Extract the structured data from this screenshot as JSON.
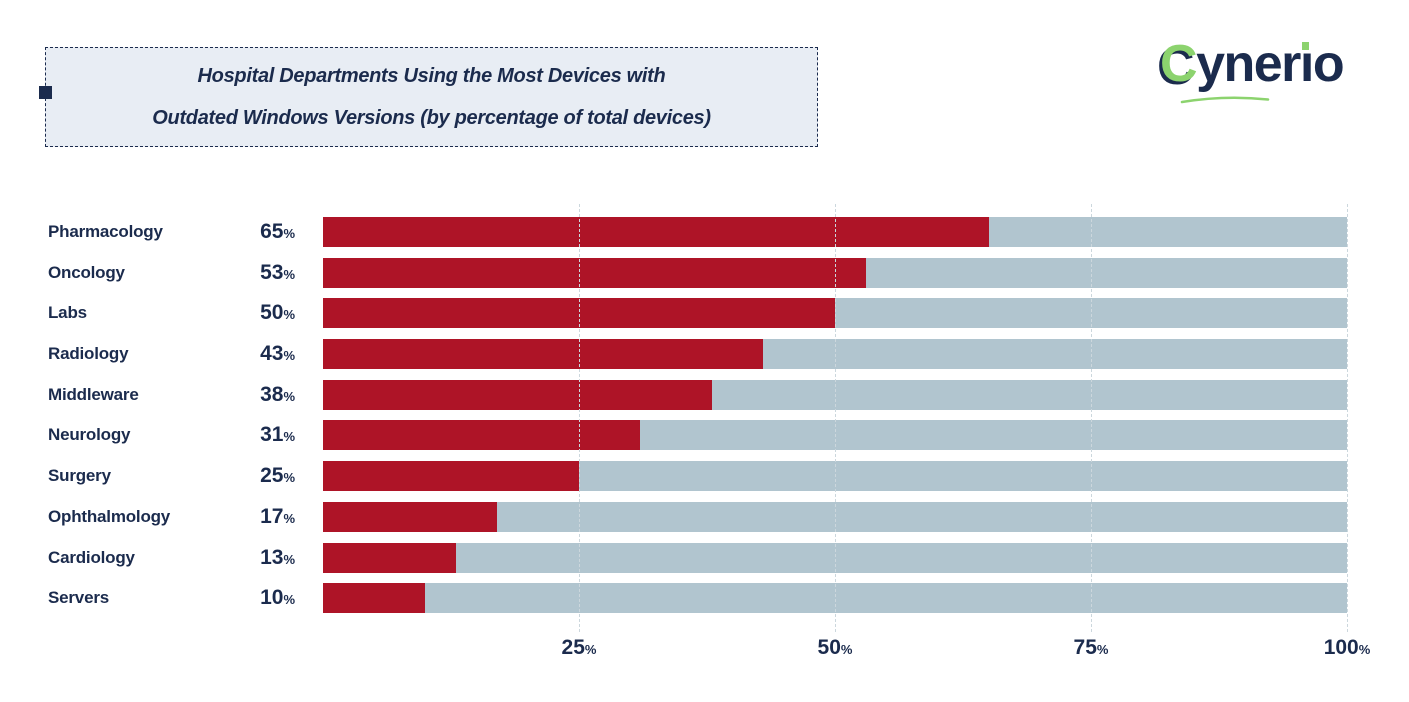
{
  "title": {
    "line1": "Hospital Departments Using the Most Devices with",
    "line2": "Outdated Windows Versions (by percentage of total devices)"
  },
  "logo": {
    "c": "C",
    "mid": "yner",
    "i": "ı",
    "o": "o",
    "full_text": "Cynerio"
  },
  "colors": {
    "navy": "#1B2B4D",
    "bar_red": "#AE1427",
    "track": "#B1C5CF",
    "title_bg": "#E8EDF4",
    "green": "#8CD36E",
    "grid": "#CCD7DD"
  },
  "chart_data": {
    "type": "bar",
    "orientation": "horizontal",
    "title": "Hospital Departments Using the Most Devices with Outdated Windows Versions (by percentage of total devices)",
    "categories": [
      "Pharmacology",
      "Oncology",
      "Labs",
      "Radiology",
      "Middleware",
      "Neurology",
      "Surgery",
      "Ophthalmology",
      "Cardiology",
      "Servers"
    ],
    "values": [
      65,
      53,
      50,
      43,
      38,
      31,
      25,
      17,
      13,
      10
    ],
    "unit": "%",
    "xlim": [
      0,
      100
    ],
    "x_ticks": [
      25,
      50,
      75,
      100
    ],
    "grid": "dashed-vertical",
    "legend": "none",
    "bar_color": "#AE1427",
    "track_color": "#B1C5CF",
    "value_labels_position": "left-of-bars"
  }
}
